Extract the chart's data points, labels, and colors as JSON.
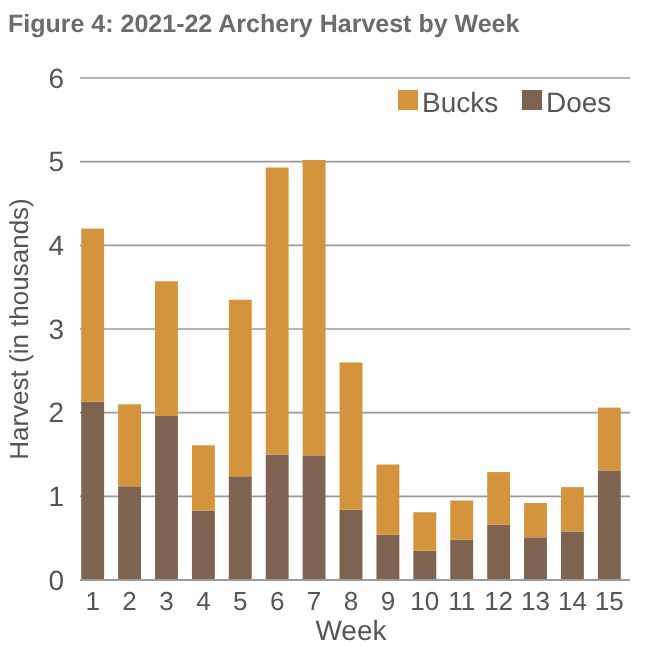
{
  "chart_data": {
    "type": "bar",
    "title": "Figure 4: 2021-22 Archery Harvest by Week",
    "xlabel": "Week",
    "ylabel": "Harvest (in thousands)",
    "categories": [
      "1",
      "2",
      "3",
      "4",
      "5",
      "6",
      "7",
      "8",
      "9",
      "10",
      "11",
      "12",
      "13",
      "14",
      "15"
    ],
    "stacked": true,
    "series": [
      {
        "name": "Does",
        "color": "#7d6350",
        "values": [
          2.13,
          1.12,
          1.96,
          0.83,
          1.24,
          1.5,
          1.49,
          0.84,
          0.54,
          0.35,
          0.48,
          0.66,
          0.51,
          0.58,
          1.31
        ]
      },
      {
        "name": "Bucks",
        "color": "#d4943e",
        "values": [
          2.07,
          0.98,
          1.61,
          0.78,
          2.11,
          3.43,
          3.53,
          1.76,
          0.84,
          0.46,
          0.47,
          0.63,
          0.41,
          0.53,
          0.75
        ]
      }
    ],
    "ylim": [
      0,
      6
    ],
    "yticks": [
      0,
      1,
      2,
      3,
      4,
      5,
      6
    ],
    "grid": "y",
    "legend": "top right"
  }
}
